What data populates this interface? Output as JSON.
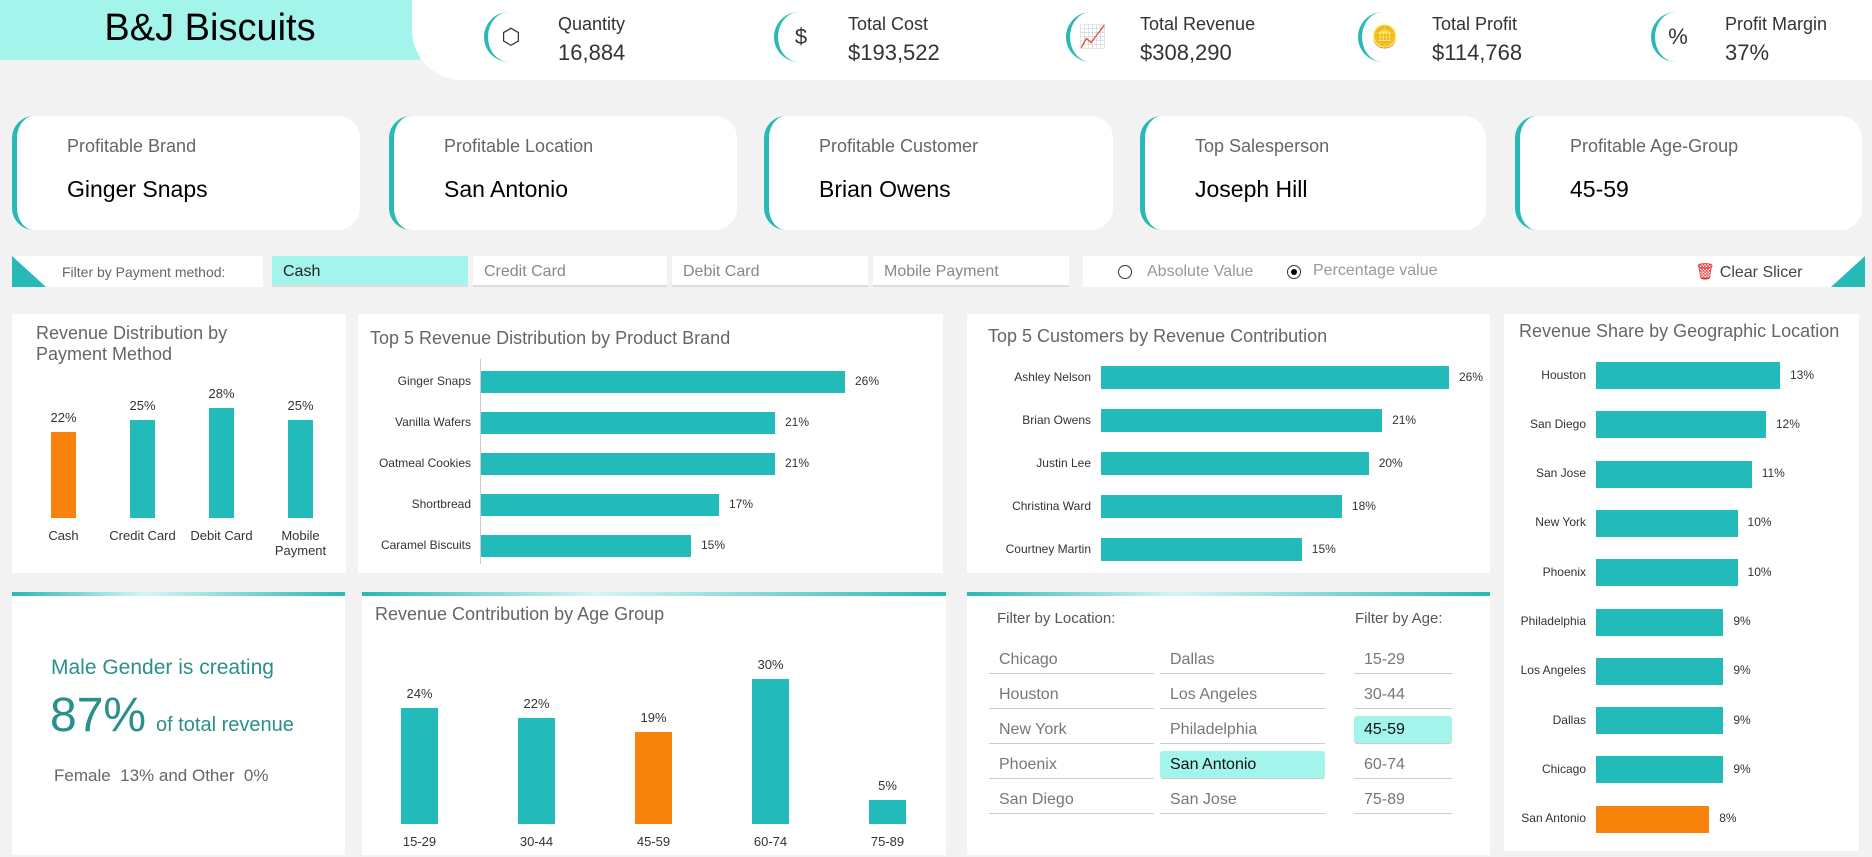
{
  "title": "B&J Biscuits",
  "kpis": [
    {
      "label": "Quantity",
      "value": "16,884",
      "icon": "cubes-icon"
    },
    {
      "label": "Total Cost",
      "value": "$193,522",
      "icon": "dollar-icon"
    },
    {
      "label": "Total Revenue",
      "value": "$308,290",
      "icon": "chart-up-icon"
    },
    {
      "label": "Total Profit",
      "value": "$114,768",
      "icon": "hand-money-icon"
    },
    {
      "label": "Profit Margin",
      "value": "37%",
      "icon": "percent-gauge-icon"
    }
  ],
  "cards": [
    {
      "label": "Profitable Brand",
      "value": "Ginger Snaps"
    },
    {
      "label": "Profitable Location",
      "value": "San Antonio"
    },
    {
      "label": "Profitable Customer",
      "value": "Brian Owens"
    },
    {
      "label": "Top Salesperson",
      "value": "Joseph Hill"
    },
    {
      "label": "Profitable Age-Group",
      "value": "45-59"
    }
  ],
  "payment_filter": {
    "label": "Filter by Payment method:",
    "options": [
      "Cash",
      "Credit Card",
      "Debit Card",
      "Mobile Payment"
    ],
    "selected": "Cash"
  },
  "value_mode": {
    "options": [
      "Absolute Value",
      "Percentage value"
    ],
    "selected": "Percentage value"
  },
  "clear_slicer": "Clear Slicer",
  "accent": "#22bbb9",
  "highlight": "#f7820c",
  "chart_data": [
    {
      "type": "bar",
      "title": "Revenue Distribution by Payment Method",
      "categories": [
        "Cash",
        "Credit Card",
        "Debit Card",
        "Mobile Payment"
      ],
      "values": [
        22,
        25,
        28,
        25
      ],
      "labels": [
        "22%",
        "25%",
        "28%",
        "25%"
      ],
      "highlight": "Cash"
    },
    {
      "type": "bar",
      "orientation": "horizontal",
      "title": "Top 5 Revenue Distribution by Product Brand",
      "categories": [
        "Ginger Snaps",
        "Vanilla Wafers",
        "Oatmeal Cookies",
        "Shortbread",
        "Caramel Biscuits"
      ],
      "values": [
        26,
        21,
        21,
        17,
        15
      ],
      "labels": [
        "26%",
        "21%",
        "21%",
        "17%",
        "15%"
      ]
    },
    {
      "type": "bar",
      "orientation": "horizontal",
      "title": "Top 5 Customers by Revenue Contribution",
      "categories": [
        "Ashley Nelson",
        "Brian Owens",
        "Justin Lee",
        "Christina Ward",
        "Courtney Martin"
      ],
      "values": [
        26,
        21,
        20,
        18,
        15
      ],
      "labels": [
        "26%",
        "21%",
        "20%",
        "18%",
        "15%"
      ]
    },
    {
      "type": "bar",
      "orientation": "horizontal",
      "title": "Revenue Share by Geographic Location",
      "categories": [
        "Houston",
        "San Diego",
        "San Jose",
        "New York",
        "Phoenix",
        "Philadelphia",
        "Los Angeles",
        "Dallas",
        "Chicago",
        "San Antonio"
      ],
      "values": [
        13,
        12,
        11,
        10,
        10,
        9,
        9,
        9,
        9,
        8
      ],
      "labels": [
        "13%",
        "12%",
        "11%",
        "10%",
        "10%",
        "9%",
        "9%",
        "9%",
        "9%",
        "8%"
      ],
      "highlight": "San Antonio"
    },
    {
      "type": "bar",
      "title": "Revenue Contribution by Age Group",
      "categories": [
        "15-29",
        "30-44",
        "45-59",
        "60-74",
        "75-89"
      ],
      "values": [
        24,
        22,
        19,
        30,
        5
      ],
      "labels": [
        "24%",
        "22%",
        "19%",
        "30%",
        "5%"
      ],
      "highlight": "45-59"
    }
  ],
  "gender": {
    "line1": "Male Gender is creating",
    "big": "87%",
    "suffix": "of total revenue",
    "line3": "Female  13% and Other  0%"
  },
  "location_filter": {
    "label": "Filter by Location:",
    "options": [
      "Chicago",
      "Dallas",
      "Houston",
      "Los Angeles",
      "New York",
      "Philadelphia",
      "Phoenix",
      "San Antonio",
      "San Diego",
      "San Jose"
    ],
    "selected": "San Antonio"
  },
  "age_filter": {
    "label": "Filter by Age:",
    "options": [
      "15-29",
      "30-44",
      "45-59",
      "60-74",
      "75-89"
    ],
    "selected": "45-59"
  }
}
